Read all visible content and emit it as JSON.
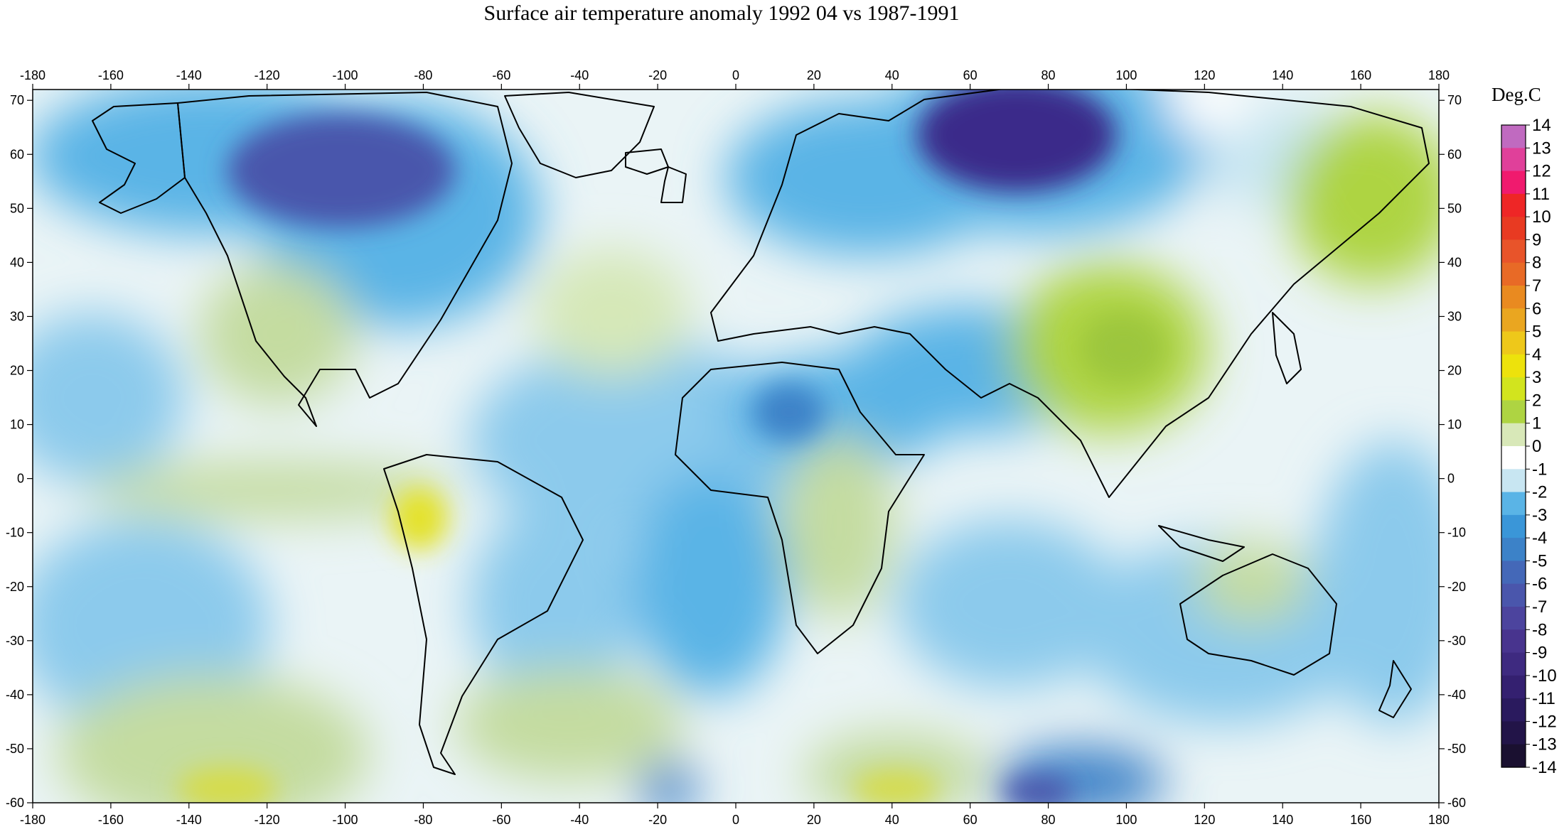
{
  "title": "Surface air temperature anomaly 1992 04 vs 1987-1991",
  "map": {
    "lon_ticks": [
      -180,
      -160,
      -140,
      -120,
      -100,
      -80,
      -60,
      -40,
      -20,
      0,
      20,
      40,
      60,
      80,
      100,
      120,
      140,
      160,
      180
    ],
    "lat_ticks": [
      70,
      60,
      50,
      40,
      30,
      20,
      10,
      0,
      -10,
      -20,
      -30,
      -40,
      -50,
      -60
    ],
    "lon_range": [
      -180,
      180
    ],
    "lat_range": [
      -60,
      72
    ]
  },
  "colorbar": {
    "unit": "Deg.C",
    "labels": [
      14,
      13,
      12,
      11,
      10,
      9,
      8,
      7,
      6,
      5,
      4,
      3,
      2,
      1,
      0,
      -1,
      -2,
      -3,
      -4,
      -5,
      -6,
      -7,
      -8,
      -9,
      -10,
      -11,
      -12,
      -13,
      -14
    ],
    "colors": [
      "#c06ac0",
      "#e0409a",
      "#f01a6e",
      "#ee2626",
      "#e83a22",
      "#e8542a",
      "#e86a26",
      "#e98a20",
      "#eaa620",
      "#eec81a",
      "#ede20c",
      "#d2e41e",
      "#aed442",
      "#d8e8b8",
      "#ffffff",
      "#c8e6f2",
      "#5ab4e6",
      "#3a96d8",
      "#3c82c8",
      "#4468b8",
      "#4a56ac",
      "#4c449e",
      "#48348e",
      "#3e2a80",
      "#342070",
      "#2a1a5e",
      "#221448",
      "#1a1030",
      "#111111"
    ]
  },
  "anomaly_colors": {
    "neutral": "#ffffff",
    "warm_light": "#d6e8b8",
    "warm_mid": "#aed442",
    "warm_strong": "#e4e22a",
    "cool_light": "#c8e6f2",
    "cool_mid": "#5ab4e6",
    "cool_strong": "#3c82c8",
    "cold_deep": "#4a3c9c",
    "cold_darkest": "#3a2c8a"
  },
  "coastline_color": "#000000"
}
